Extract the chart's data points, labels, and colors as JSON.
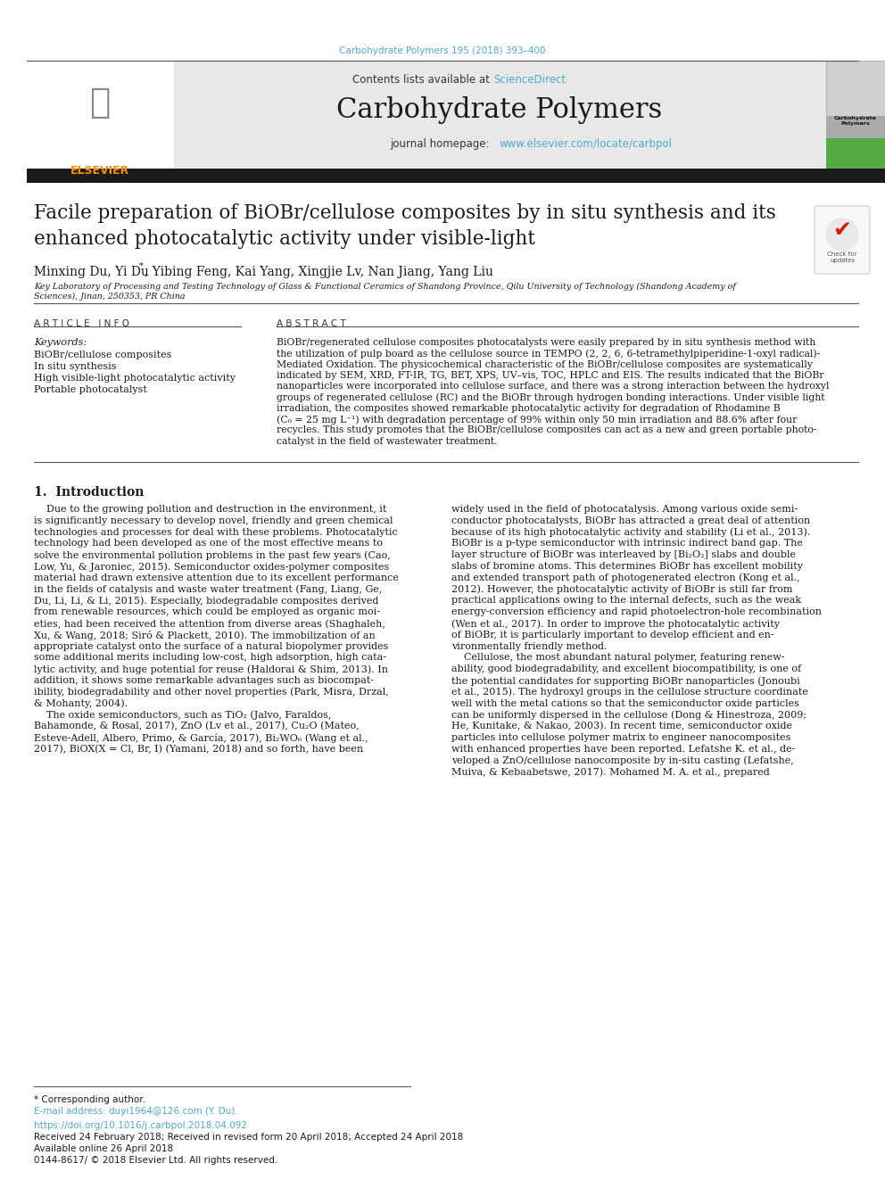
{
  "page_bg": "#ffffff",
  "top_citation": "Carbohydrate Polymers 195 (2018) 393–400",
  "top_citation_color": "#4BACC6",
  "header_bg": "#e8e8e8",
  "sciencedirect_color": "#4BACC6",
  "journal_homepage_color": "#4BACC6",
  "black_bar_color": "#1a1a1a",
  "keywords": [
    "BiOBr/cellulose composites",
    "In situ synthesis",
    "High visible-light photocatalytic activity",
    "Portable photocatalyst"
  ],
  "abstract_lines": [
    "BiOBr/regenerated cellulose composites photocatalysts were easily prepared by in situ synthesis method with",
    "the utilization of pulp board as the cellulose source in TEMPO (2, 2, 6, 6-tetramethylpiperidine-1-oxyl radical)-",
    "Mediated Oxidation. The physicochemical characteristic of the BiOBr/cellulose composites are systematically",
    "indicated by SEM, XRD, FT-IR, TG, BET, XPS, UV–vis, TOC, HPLC and EIS. The results indicated that the BiOBr",
    "nanoparticles were incorporated into cellulose surface, and there was a strong interaction between the hydroxyl",
    "groups of regenerated cellulose (RC) and the BiOBr through hydrogen bonding interactions. Under visible light",
    "irradiation, the composites showed remarkable photocatalytic activity for degradation of Rhodamine B",
    "(C₀ = 25 mg L⁻¹) with degradation percentage of 99% within only 50 min irradiation and 88.6% after four",
    "recycles. This study promotes that the BiOBr/cellulose composites can act as a new and green portable photo-",
    "catalyst in the field of wastewater treatment."
  ],
  "intro1_lines": [
    "    Due to the growing pollution and destruction in the environment, it",
    "is significantly necessary to develop novel, friendly and green chemical",
    "technologies and processes for deal with these problems. Photocatalytic",
    "technology had been developed as one of the most effective means to",
    "solve the environmental pollution problems in the past few years (Cao,",
    "Low, Yu, & Jaroniec, 2015). Semiconductor oxides-polymer composites",
    "material had drawn extensive attention due to its excellent performance",
    "in the fields of catalysis and waste water treatment (Fang, Liang, Ge,",
    "Du, Li, Li, & Li, 2015). Especially, biodegradable composites derived",
    "from renewable resources, which could be employed as organic moi-",
    "eties, had been received the attention from diverse areas (Shaghaleh,",
    "Xu, & Wang, 2018; Siró & Plackett, 2010). The immobilization of an",
    "appropriate catalyst onto the surface of a natural biopolymer provides",
    "some additional merits including low-cost, high adsorption, high cata-",
    "lytic activity, and huge potential for reuse (Haldorai & Shim, 2013). In",
    "addition, it shows some remarkable advantages such as biocompat-",
    "ibility, biodegradability and other novel properties (Park, Misra, Drzal,",
    "& Mohanty, 2004).",
    "    The oxide semiconductors, such as TiO₂ (Jalvo, Faraldos,",
    "Bahamonde, & Rosal, 2017), ZnO (Lv et al., 2017), Cu₂O (Mateo,",
    "Esteve-Adell, Albero, Primo, & García, 2017), Bi₂WO₆ (Wang et al.,",
    "2017), BiOX(X = Cl, Br, I) (Yamani, 2018) and so forth, have been"
  ],
  "intro2_lines": [
    "widely used in the field of photocatalysis. Among various oxide semi-",
    "conductor photocatalysts, BiOBr has attracted a great deal of attention",
    "because of its high photocatalytic activity and stability (Li et al., 2013).",
    "BiOBr is a p-type semiconductor with intrinsic indirect band gap. The",
    "layer structure of BiOBr was interleaved by [Bi₂O₂] slabs and double",
    "slabs of bromine atoms. This determines BiOBr has excellent mobility",
    "and extended transport path of photogenerated electron (Kong et al.,",
    "2012). However, the photocatalytic activity of BiOBr is still far from",
    "practical applications owing to the internal defects, such as the weak",
    "energy-conversion efficiency and rapid photoelectron-hole recombination",
    "(Wen et al., 2017). In order to improve the photocatalytic activity",
    "of BiOBr, it is particularly important to develop efficient and en-",
    "vironmentally friendly method.",
    "    Cellulose, the most abundant natural polymer, featuring renew-",
    "ability, good biodegradability, and excellent biocompatibility, is one of",
    "the potential candidates for supporting BiOBr nanoparticles (Jonoubi",
    "et al., 2015). The hydroxyl groups in the cellulose structure coordinate",
    "well with the metal cations so that the semiconductor oxide particles",
    "can be uniformly dispersed in the cellulose (Dong & Hinestroza, 2009;",
    "He, Kunitake, & Nakao, 2003). In recent time, semiconductor oxide",
    "particles into cellulose polymer matrix to engineer nanocomposites",
    "with enhanced properties have been reported. Lefatshe K. et al., de-",
    "veloped a ZnO/cellulose nanocomposite by in-situ casting (Lefatshe,",
    "Muiva, & Kebaabetswe, 2017). Mohamed M. A. et al., prepared"
  ],
  "link_color": "#4BACC6"
}
